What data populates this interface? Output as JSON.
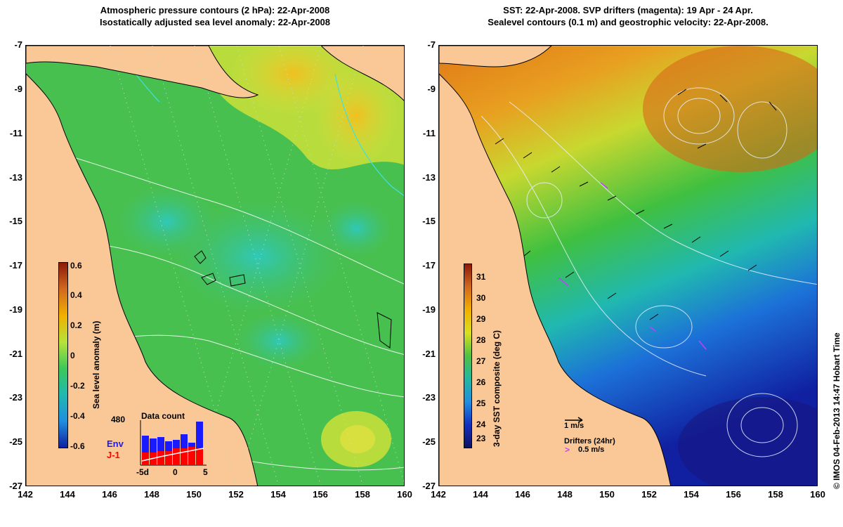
{
  "left_panel": {
    "title_line1": "Atmospheric pressure contours (2 hPa): 22-Apr-2008",
    "title_line2": "Isostatically adjusted sea level anomaly: 22-Apr-2008",
    "colorbar": {
      "label": "Sea level anomaly (m)",
      "ticks": [
        "0.6",
        "0.4",
        "0.2",
        "0",
        "-0.2",
        "-0.4",
        "-0.6"
      ],
      "colors": [
        "#8b1a0a",
        "#d2691e",
        "#f0b000",
        "#b7e23a",
        "#3cc85a",
        "#20b8b0",
        "#1f8fe0",
        "#1020a0"
      ]
    },
    "data_count": {
      "title": "Data count",
      "max_label": "480",
      "env_label": "Env",
      "j1_label": "J-1",
      "x_ticks": [
        "-5d",
        "0",
        "5"
      ],
      "env_color": "#1a1aff",
      "j1_color": "#ff0000"
    }
  },
  "right_panel": {
    "title_line1": "SST: 22-Apr-2008. SVP drifters (magenta): 19 Apr - 24 Apr.",
    "title_line2": "Sealevel contours (0.1 m) and geostrophic velocity: 22-Apr-2008.",
    "colorbar": {
      "label": "3-day SST composite (deg C)",
      "ticks": [
        "31",
        "30",
        "29",
        "28",
        "27",
        "26",
        "25",
        "24",
        "23"
      ],
      "colors": [
        "#8b1a0a",
        "#d2691e",
        "#f0b000",
        "#d8e020",
        "#50c040",
        "#20b8a0",
        "#1f8fe0",
        "#1030c0",
        "#101060"
      ]
    },
    "legend": {
      "velocity_label": "1 m/s",
      "drifters_label": "Drifters (24hr)",
      "drifter_speed_label": "0.5 m/s",
      "drifter_symbol": ">"
    }
  },
  "axes": {
    "y_ticks": [
      "-7",
      "-9",
      "-11",
      "-13",
      "-15",
      "-17",
      "-19",
      "-21",
      "-23",
      "-25",
      "-27"
    ],
    "x_ticks": [
      "142",
      "144",
      "146",
      "148",
      "150",
      "152",
      "154",
      "156",
      "158",
      "160"
    ]
  },
  "copyright": "© IMOS 04-Feb-2013 14:47 Hobart Time",
  "colors": {
    "land": "#fac896",
    "coast": "#000000"
  }
}
